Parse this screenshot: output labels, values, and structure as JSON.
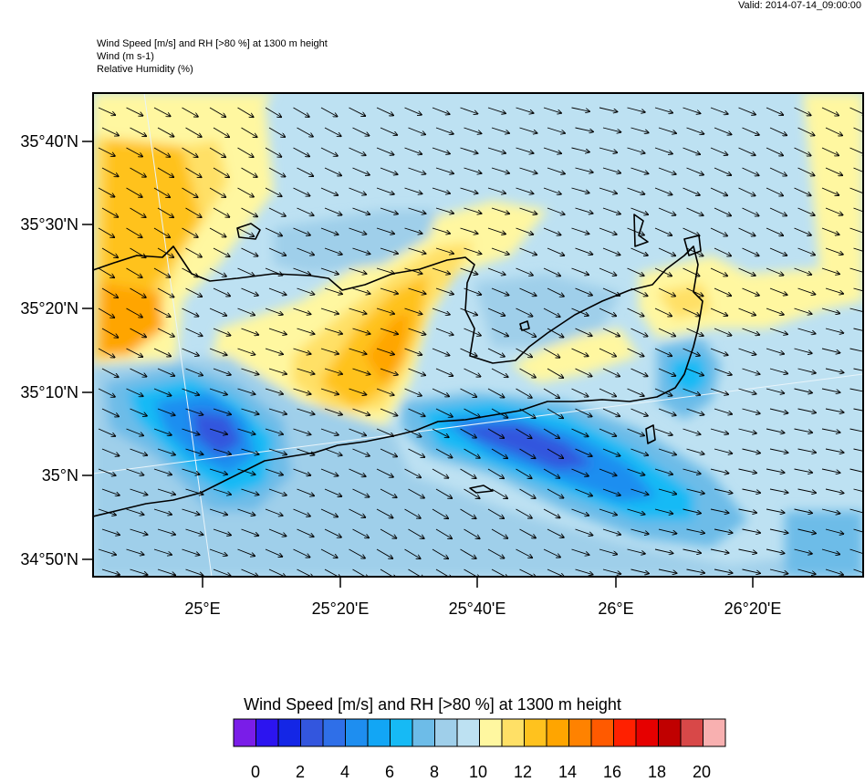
{
  "valid": "Valid: 2014-07-14_09:00:00",
  "header": {
    "line1": "Wind Speed [m/s] and RH [>80 %] at 1300 m height",
    "line2": "Wind   (m s-1)",
    "line3": "Relative Humidity   (%)"
  },
  "lat_labels": [
    "35°40'N",
    "35°30'N",
    "35°20'N",
    "35°10'N",
    "35°N",
    "34°50'N"
  ],
  "lon_labels": [
    "25°E",
    "25°20'E",
    "25°40'E",
    "26°E",
    "26°20'E"
  ],
  "colorbar": {
    "title": "Wind Speed [m/s] and RH [>80 %] at 1300 m height",
    "labels": [
      "0",
      "2",
      "4",
      "6",
      "8",
      "10",
      "12",
      "14",
      "16",
      "18",
      "20"
    ],
    "colors": [
      "#7a1de8",
      "#2c14f0",
      "#1426e6",
      "#3356de",
      "#2f6fe8",
      "#1e8ef0",
      "#12a6f5",
      "#16baf5",
      "#6dbce8",
      "#9fcfea",
      "#bde1f2",
      "#fff7a0",
      "#ffe066",
      "#ffc21e",
      "#ffa500",
      "#ff8200",
      "#ff5a00",
      "#ff2000",
      "#e60000",
      "#c00000",
      "#d84848",
      "#f8b0b0"
    ]
  },
  "map": {
    "ocean_color": "#bde1f2",
    "wind_direction": "west-northwest",
    "coast_color": "#000000"
  }
}
